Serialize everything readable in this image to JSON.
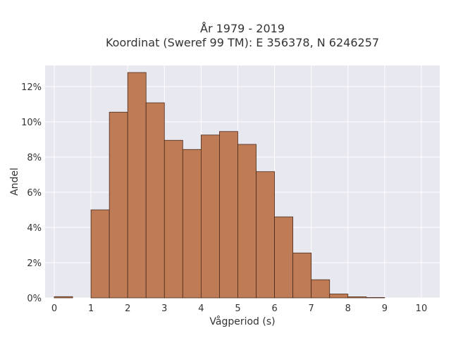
{
  "chart_data": {
    "type": "bar",
    "title_line1": "År 1979 - 2019",
    "title_line2": "Koordinat (Sweref 99 TM): E 356378, N 6246257",
    "xlabel": "Vågperiod (s)",
    "ylabel": "Andel",
    "xlim": [
      -0.25,
      10.5
    ],
    "ylim": [
      0,
      13.2
    ],
    "x_ticks": [
      0,
      1,
      2,
      3,
      4,
      5,
      6,
      7,
      8,
      9,
      10
    ],
    "y_ticks": [
      0,
      2,
      4,
      6,
      8,
      10,
      12
    ],
    "y_tick_labels": [
      "0%",
      "2%",
      "4%",
      "6%",
      "8%",
      "10%",
      "12%"
    ],
    "bin_width": 0.5,
    "bins": [
      {
        "start": 0.0,
        "value": 0.07
      },
      {
        "start": 0.5,
        "value": 0.0
      },
      {
        "start": 1.0,
        "value": 5.0
      },
      {
        "start": 1.5,
        "value": 10.55
      },
      {
        "start": 2.0,
        "value": 12.8
      },
      {
        "start": 2.5,
        "value": 11.08
      },
      {
        "start": 3.0,
        "value": 8.95
      },
      {
        "start": 3.5,
        "value": 8.43
      },
      {
        "start": 4.0,
        "value": 9.25
      },
      {
        "start": 4.5,
        "value": 9.45
      },
      {
        "start": 5.0,
        "value": 8.72
      },
      {
        "start": 5.5,
        "value": 7.17
      },
      {
        "start": 6.0,
        "value": 4.6
      },
      {
        "start": 6.5,
        "value": 2.55
      },
      {
        "start": 7.0,
        "value": 1.03
      },
      {
        "start": 7.5,
        "value": 0.22
      },
      {
        "start": 8.0,
        "value": 0.06
      },
      {
        "start": 8.5,
        "value": 0.02
      }
    ],
    "grid": true,
    "colors": {
      "bar_fill": "#bf7b55",
      "bar_stroke": "#4a2a1a",
      "plot_bg": "#e8e8f0",
      "grid": "#ffffff"
    }
  }
}
